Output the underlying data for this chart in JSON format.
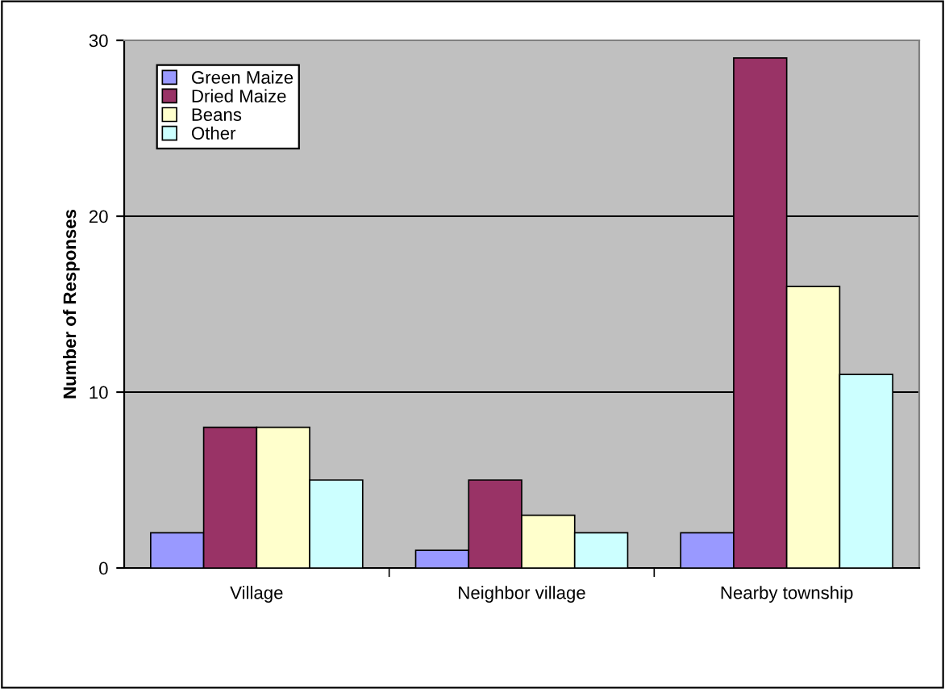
{
  "chart_data": {
    "type": "bar",
    "ylabel": "Number of Responses",
    "categories": [
      "Village",
      "Neighbor village",
      "Nearby township"
    ],
    "series": [
      {
        "name": "Green Maize",
        "color": "#9999ff",
        "values": [
          2,
          1,
          2
        ]
      },
      {
        "name": "Dried Maize",
        "color": "#993366",
        "values": [
          8,
          5,
          29
        ]
      },
      {
        "name": "Beans",
        "color": "#ffffcc",
        "values": [
          8,
          3,
          16
        ]
      },
      {
        "name": "Other",
        "color": "#ccffff",
        "values": [
          5,
          2,
          11
        ]
      }
    ],
    "ylim": [
      0,
      30
    ],
    "yticks": [
      0,
      10,
      20,
      30
    ],
    "grid": "y",
    "legend": "top left"
  }
}
